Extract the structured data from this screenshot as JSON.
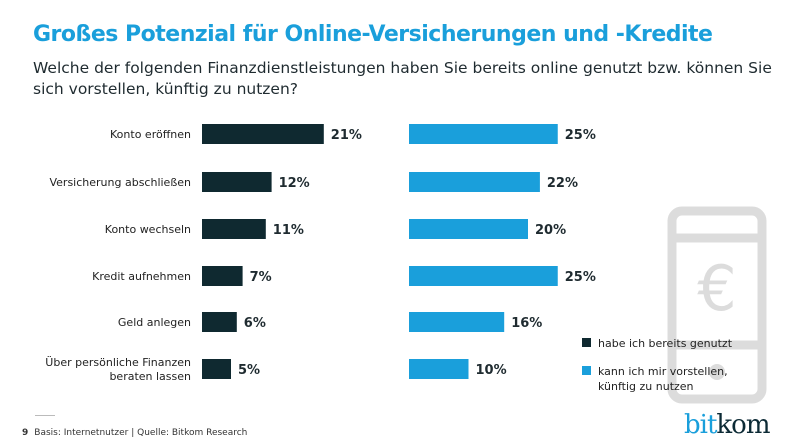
{
  "title": "Großes Potenzial für Online-Versicherungen und -Kredite",
  "subtitle": "Welche der folgenden Finanzdienstleistungen haben Sie bereits online genutzt bzw. können Sie sich vorstellen, künftig zu nutzen?",
  "footer": {
    "page": "9",
    "text": "Basis: Internetnutzer  | Quelle: Bitkom Research"
  },
  "logo": {
    "part1": "bit",
    "part2": "kom"
  },
  "colors": {
    "used": "#0f2930",
    "imagine": "#1a9fdb",
    "title": "#1a9fdb",
    "icon": "#dcdcdc"
  },
  "icon": "smartphone-euro-icon",
  "chart_data": {
    "type": "bar",
    "orientation": "horizontal",
    "categories": [
      "Konto eröffnen",
      "Versicherung abschließen",
      "Konto wechseln",
      "Kredit aufnehmen",
      "Geld anlegen",
      "Über persönliche Finanzen beraten lassen"
    ],
    "series": [
      {
        "name": "habe ich bereits genutzt",
        "values": [
          21,
          12,
          11,
          7,
          6,
          5
        ],
        "labels": [
          "21%",
          "12%",
          "11%",
          "7%",
          "6%",
          "5%"
        ]
      },
      {
        "name": "kann ich mir vorstellen, künftig zu nutzen",
        "values": [
          25,
          22,
          20,
          25,
          16,
          10
        ],
        "labels": [
          "25%",
          "22%",
          "20%",
          "25%",
          "16%",
          "10%"
        ]
      }
    ],
    "legend": "bottom-right"
  }
}
